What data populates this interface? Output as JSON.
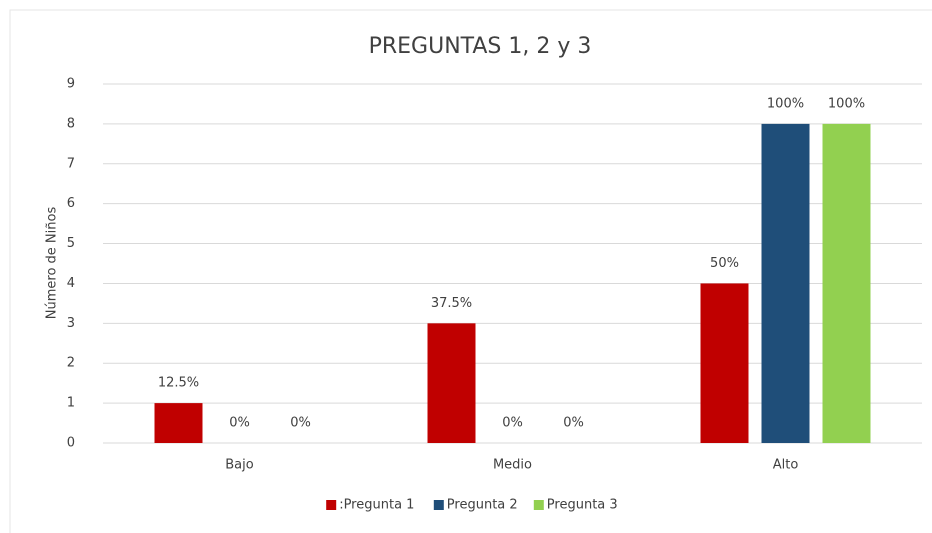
{
  "chart_data": {
    "type": "bar",
    "title": "PREGUNTAS 1, 2 y 3",
    "y_label": "Número de Niños",
    "categories": [
      "Bajo",
      "Medio",
      "Alto"
    ],
    "series": [
      {
        "name": ":Pregunta 1",
        "color": "#c00000",
        "values": [
          1,
          3,
          4
        ],
        "value_labels": [
          "12.5%",
          "37.5%",
          "50%"
        ]
      },
      {
        "name": "Pregunta 2",
        "color": "#1f4e79",
        "values": [
          0,
          0,
          8
        ],
        "value_labels": [
          "0%",
          "0%",
          "100%"
        ]
      },
      {
        "name": "Pregunta 3",
        "color": "#92d050",
        "values": [
          0,
          0,
          8
        ],
        "value_labels": [
          "0%",
          "0%",
          "100%"
        ]
      }
    ],
    "ylim": [
      0,
      9
    ],
    "yticks": [
      0,
      1,
      2,
      3,
      4,
      5,
      6,
      7,
      8,
      9
    ],
    "grid": true,
    "legend": "bottom"
  }
}
